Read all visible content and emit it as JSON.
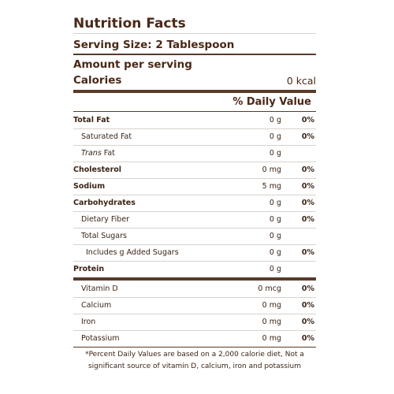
{
  "label": {
    "title": "Nutrition Facts",
    "serving_size": "Serving Size: 2 Tablespoon",
    "amount_per_serving": "Amount per serving",
    "calories_label": "Calories",
    "calories_value": "0 kcal",
    "daily_value_header": "% Daily Value",
    "nutrients": [
      {
        "label": "Total Fat",
        "amount": "0 g",
        "daily_value": "0%",
        "level": 0
      },
      {
        "label": "Saturated Fat",
        "amount": "0 g",
        "daily_value": "0%",
        "level": 1
      },
      {
        "italic": "Trans",
        "label": "Fat",
        "amount": "0 g",
        "level": 1
      },
      {
        "label": "Cholesterol",
        "amount": "0 mg",
        "daily_value": "0%",
        "level": 0
      },
      {
        "label": "Sodium",
        "amount": "5 mg",
        "daily_value": "0%",
        "level": 0
      },
      {
        "label": "Carbohydrates",
        "amount": "0 g",
        "daily_value": "0%",
        "level": 0
      },
      {
        "label": "Dietary Fiber",
        "amount": "0 g",
        "daily_value": "0%",
        "level": 1
      },
      {
        "label": "Total Sugars",
        "amount": "0 g",
        "level": 1
      },
      {
        "label": "Includes g Added Sugars",
        "amount": "0 g",
        "daily_value": "0%",
        "level": 2
      },
      {
        "label": "Protein",
        "amount": "0 g",
        "level": 0
      }
    ],
    "vitamins": [
      {
        "label": "Vitamin D",
        "amount": "0 mcg",
        "daily_value": "0%",
        "level": 1
      },
      {
        "label": "Calcium",
        "amount": "0 mg",
        "daily_value": "0%",
        "level": 1
      },
      {
        "label": "Iron",
        "amount": "0 mg",
        "daily_value": "0%",
        "level": 1
      },
      {
        "label": "Potassium",
        "amount": "0 mg",
        "daily_value": "0%",
        "level": 1
      }
    ],
    "footnote": "*Percent Daily Values are based on a 2,000 calorie diet, Not a significant source of vitamin D, calcium, iron and potassium"
  }
}
